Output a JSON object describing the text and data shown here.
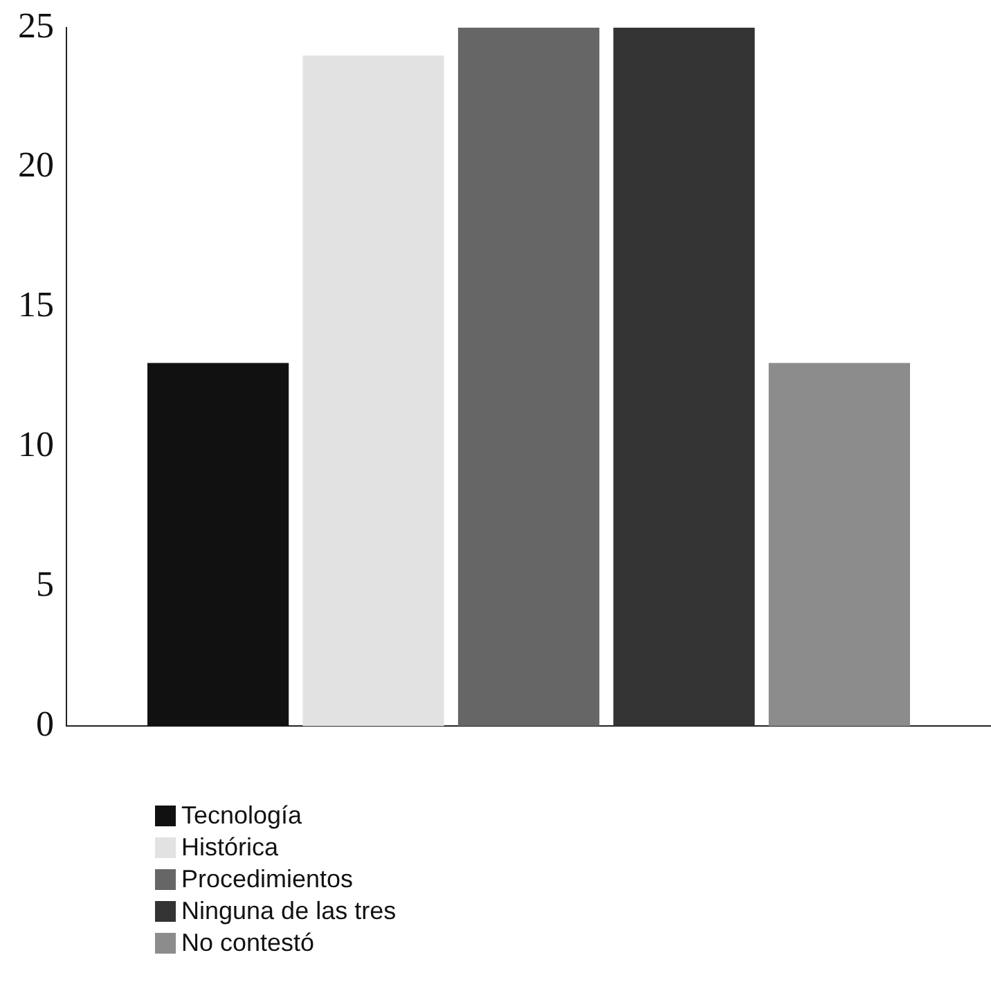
{
  "chart_data": {
    "type": "bar",
    "categories": [
      null
    ],
    "series": [
      {
        "name": "Tecnología",
        "color": "#111111",
        "values": [
          13
        ]
      },
      {
        "name": "Histórica",
        "color": "#e2e2e2",
        "values": [
          24
        ]
      },
      {
        "name": "Procedimientos",
        "color": "#666666",
        "values": [
          25
        ]
      },
      {
        "name": "Ninguna de las tres",
        "color": "#333333",
        "values": [
          25
        ]
      },
      {
        "name": "No contestó",
        "color": "#8c8c8c",
        "values": [
          13
        ]
      }
    ],
    "ylim": [
      0,
      25
    ],
    "yticks": [
      0,
      5,
      10,
      15,
      20,
      25
    ],
    "grid": false,
    "legend": "bottom"
  }
}
